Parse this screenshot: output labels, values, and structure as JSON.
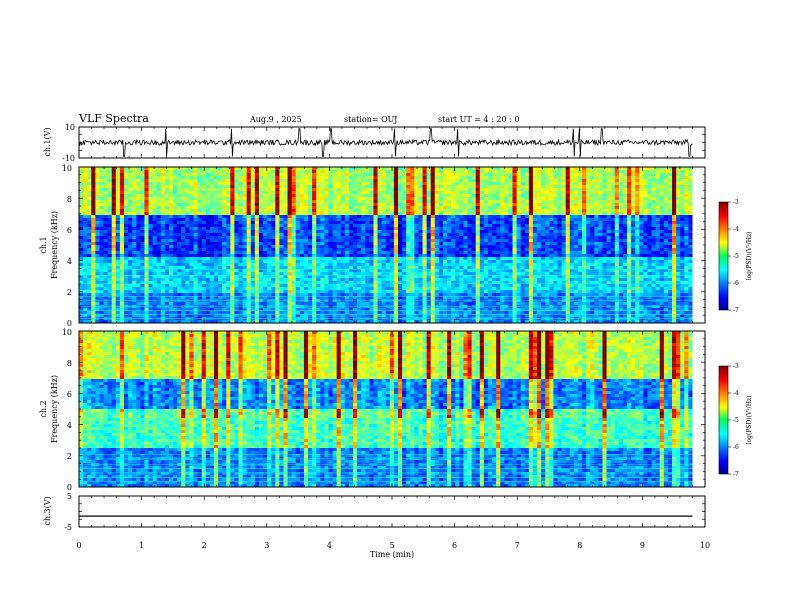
{
  "header": {
    "title": "VLF Spectra",
    "date": "Aug.9  , 2025",
    "station": "station= OUJ",
    "start_ut": "start  UT  =   4 : 20 : 0"
  },
  "chart_data": [
    {
      "type": "line",
      "panel": "ch.1 waveform",
      "ylabel": "ch.1(V)",
      "ylim": [
        -10,
        10
      ],
      "ytick_labels": [
        "10",
        "-10"
      ],
      "x_range_min": [
        0,
        10
      ],
      "data_extent_min": [
        0,
        9.8
      ],
      "baseline_v": 0,
      "spike_times_min": [
        0.72,
        1.4,
        2.45,
        3.52,
        3.9,
        4.02,
        5.05,
        5.62,
        6.05,
        7.9,
        8.0,
        8.35,
        9.75
      ]
    },
    {
      "type": "heatmap",
      "panel": "ch.1 spectrogram",
      "ylabel": "ch.1\nFrequency  (kHz)",
      "ylim": [
        0,
        10
      ],
      "ytick_labels": [
        "0",
        "2",
        "4",
        "6",
        "8",
        "10"
      ],
      "xlim": [
        0,
        10
      ],
      "data_extent_min": [
        0,
        9.8
      ],
      "colorbar": {
        "label": "log(PSD)(V²/Hz)",
        "range": [
          -7,
          -3
        ],
        "tick_labels": [
          "-3",
          "-4",
          "-5",
          "-6",
          "-7"
        ]
      }
    },
    {
      "type": "heatmap",
      "panel": "ch.2 spectrogram",
      "ylabel": "ch.2\nFrequency  (kHz)",
      "ylim": [
        0,
        10
      ],
      "ytick_labels": [
        "0",
        "2",
        "4",
        "6",
        "8",
        "10"
      ],
      "xlim": [
        0,
        10
      ],
      "data_extent_min": [
        0,
        9.8
      ],
      "colorbar": {
        "label": "log(PSD)(V²/Hz)",
        "range": [
          -7,
          -3
        ],
        "tick_labels": [
          "-3",
          "-4",
          "-5",
          "-6",
          "-7"
        ]
      }
    },
    {
      "type": "line",
      "panel": "ch.3 waveform",
      "ylabel": "ch.3(V)",
      "ylim": [
        -5,
        5
      ],
      "ytick_labels": [
        "5",
        "-5"
      ],
      "x": [
        0,
        9.8
      ],
      "y": [
        -1.5,
        -1.5
      ]
    }
  ],
  "xaxis": {
    "label": "Time  (min)",
    "tick_labels": [
      "0",
      "1",
      "2",
      "3",
      "4",
      "5",
      "6",
      "7",
      "8",
      "9",
      "10"
    ]
  },
  "colors": {
    "jet_low": "#00008f",
    "jet_high": "#800000",
    "trace": "#000000"
  }
}
